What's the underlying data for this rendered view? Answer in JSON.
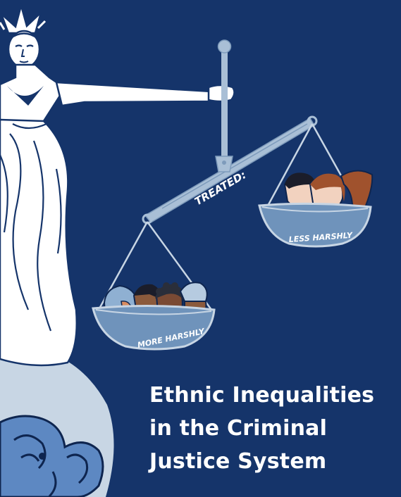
{
  "title": {
    "line1": "Ethnic Inequalities",
    "line2": "in the Criminal",
    "line3": "Justice System"
  },
  "scale": {
    "beam_label": "TREATED:",
    "right_pan_label": "LESS HARSHLY",
    "left_pan_label": "MORE HARSHLY"
  },
  "colors": {
    "background": "#15346a",
    "statue": "#ffffff",
    "statue_outline": "#15346a",
    "scale_metal": "#a9bfd6",
    "pan_fill": "#6f93bb",
    "globe": "#c8d6e4",
    "base_ornament": "#5d88c2"
  }
}
